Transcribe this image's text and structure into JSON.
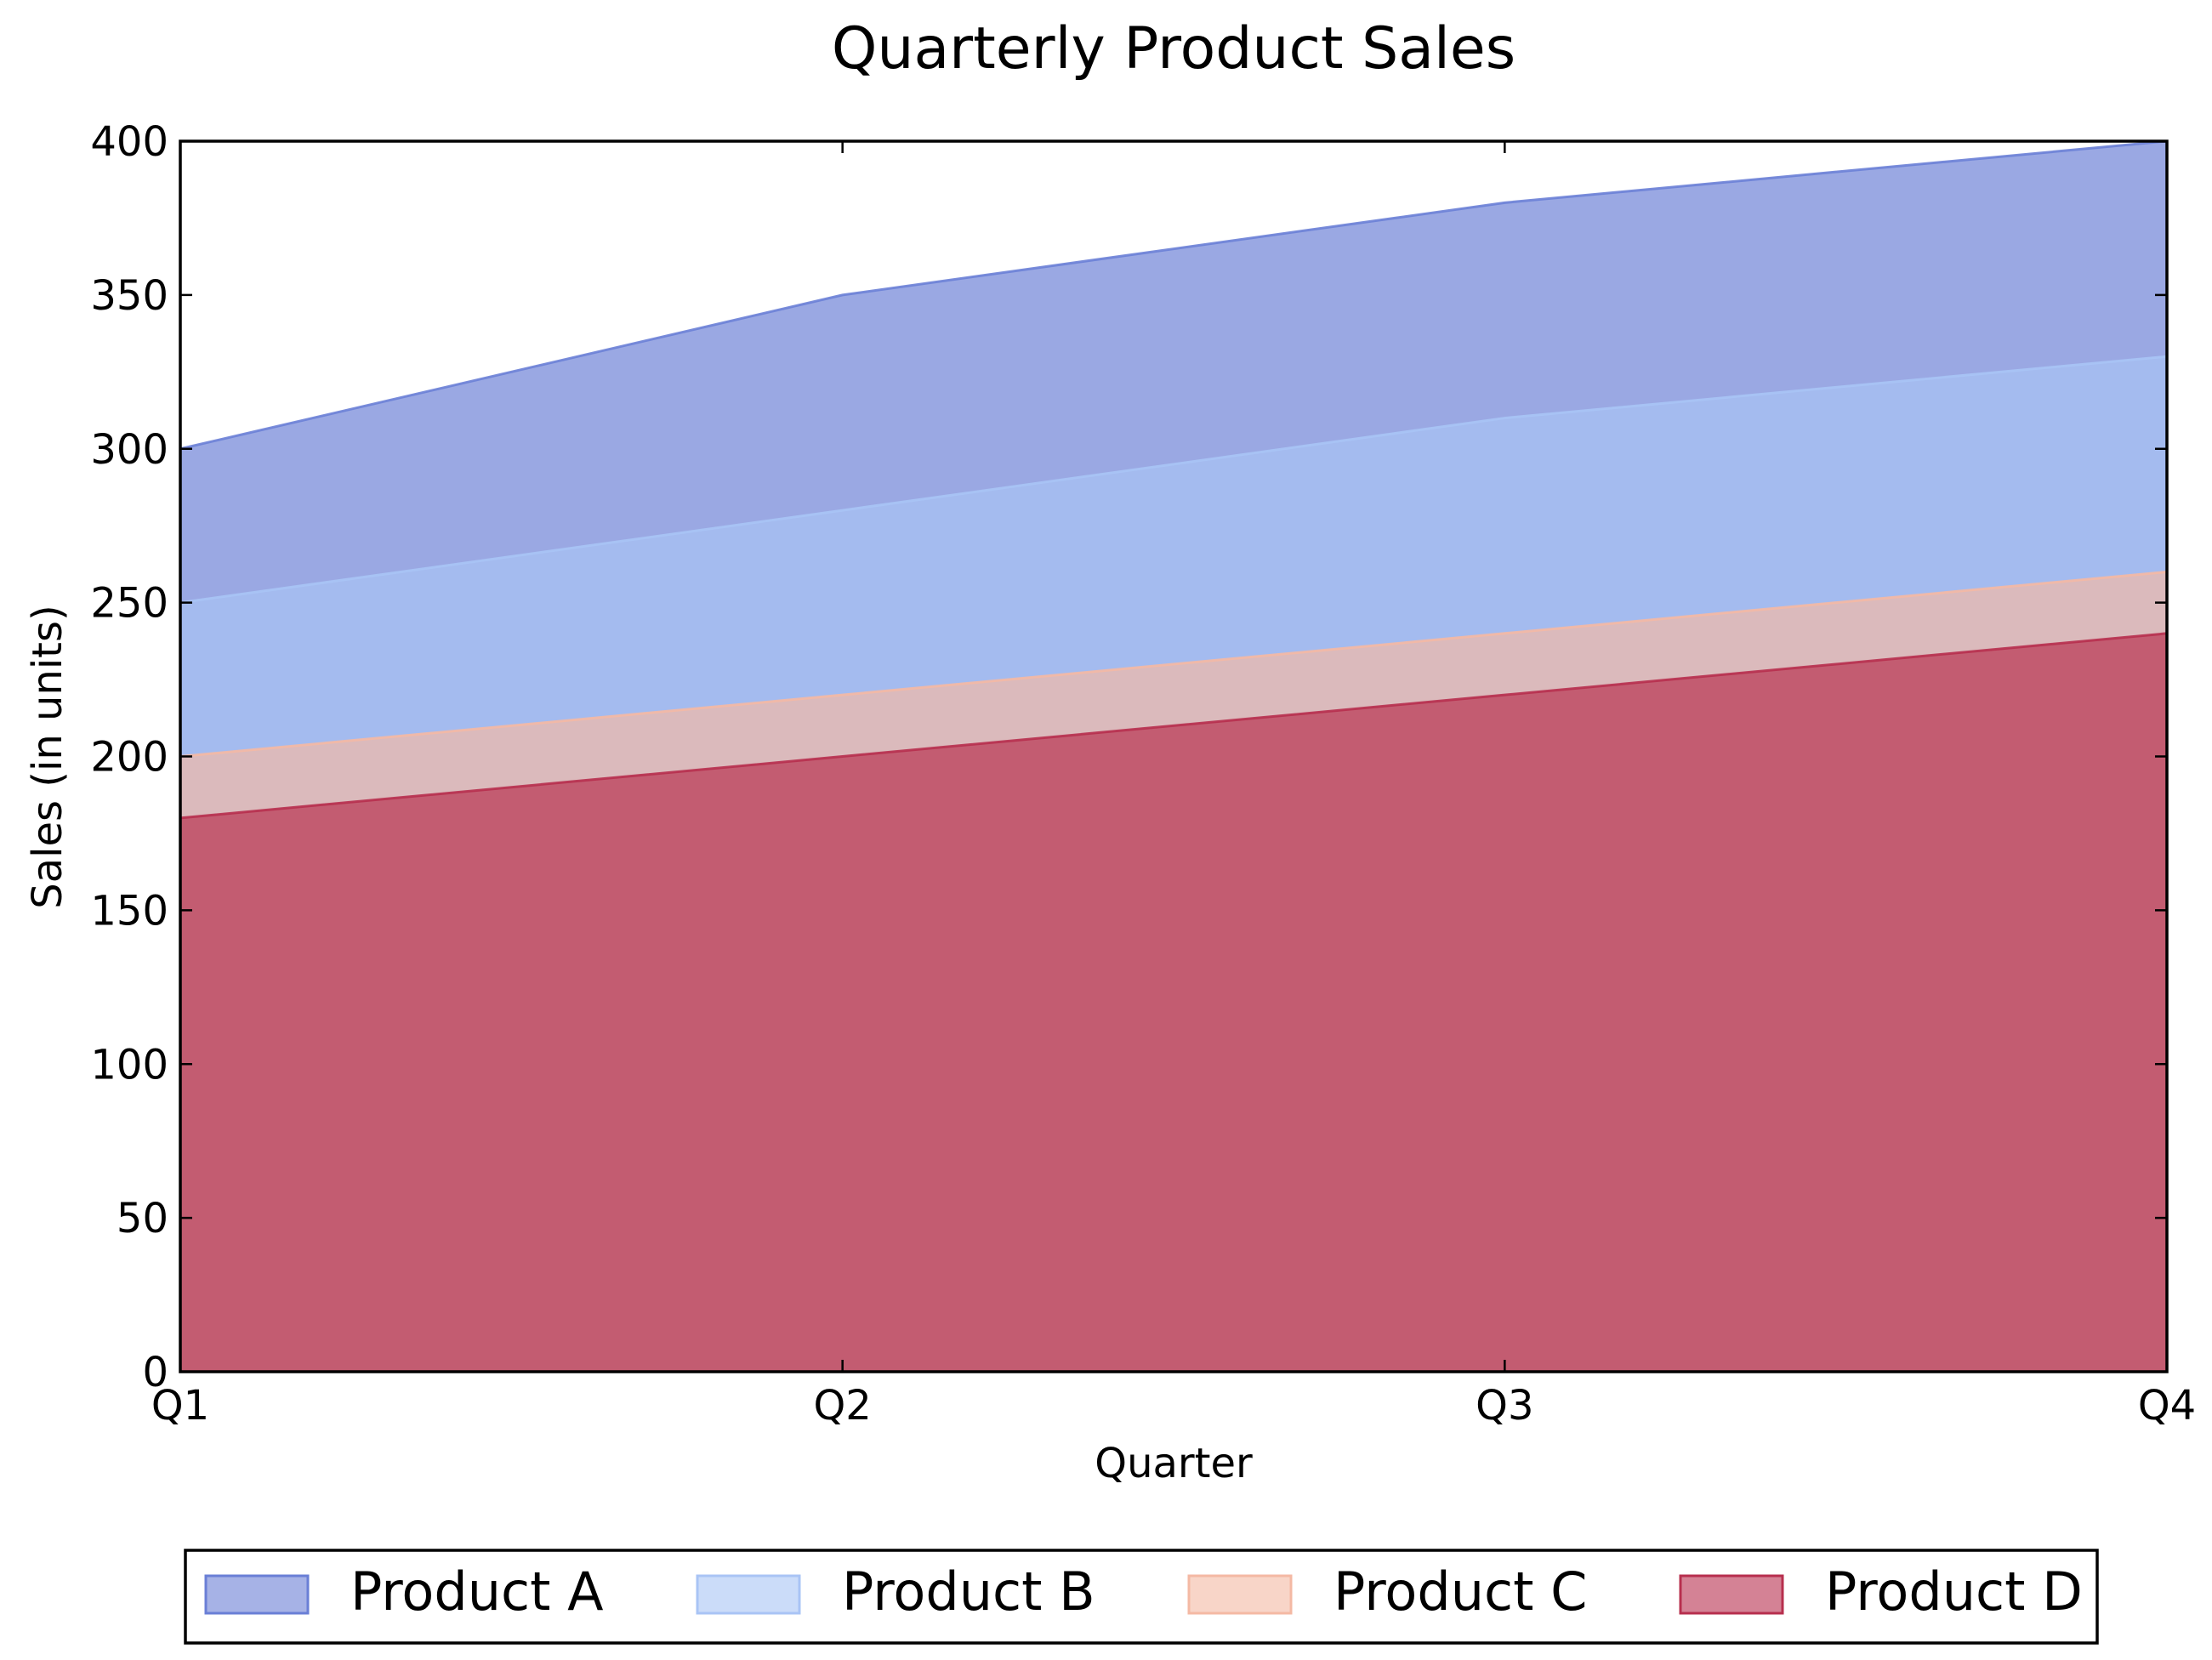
{
  "chart_data": {
    "type": "area",
    "stacked": true,
    "title": "Quarterly Product Sales",
    "xlabel": "Quarter",
    "ylabel": "Sales (in units)",
    "categories": [
      "Q1",
      "Q2",
      "Q3",
      "Q4"
    ],
    "ylim": [
      0,
      400
    ],
    "yticks": [
      0,
      50,
      100,
      150,
      200,
      250,
      300,
      350,
      400
    ],
    "grid": false,
    "legend_position": "bottom",
    "series": [
      {
        "name": "Product A",
        "values": [
          50,
          70,
          70,
          70
        ],
        "color": "#6a7fd6"
      },
      {
        "name": "Product B",
        "values": [
          50,
          60,
          70,
          70
        ],
        "color": "#a9c4f5"
      },
      {
        "name": "Product C",
        "values": [
          20,
          20,
          20,
          20
        ],
        "color": "#f4b9a4"
      },
      {
        "name": "Product D",
        "values": [
          180,
          200,
          220,
          240
        ],
        "color": "#b72f4e"
      }
    ]
  }
}
